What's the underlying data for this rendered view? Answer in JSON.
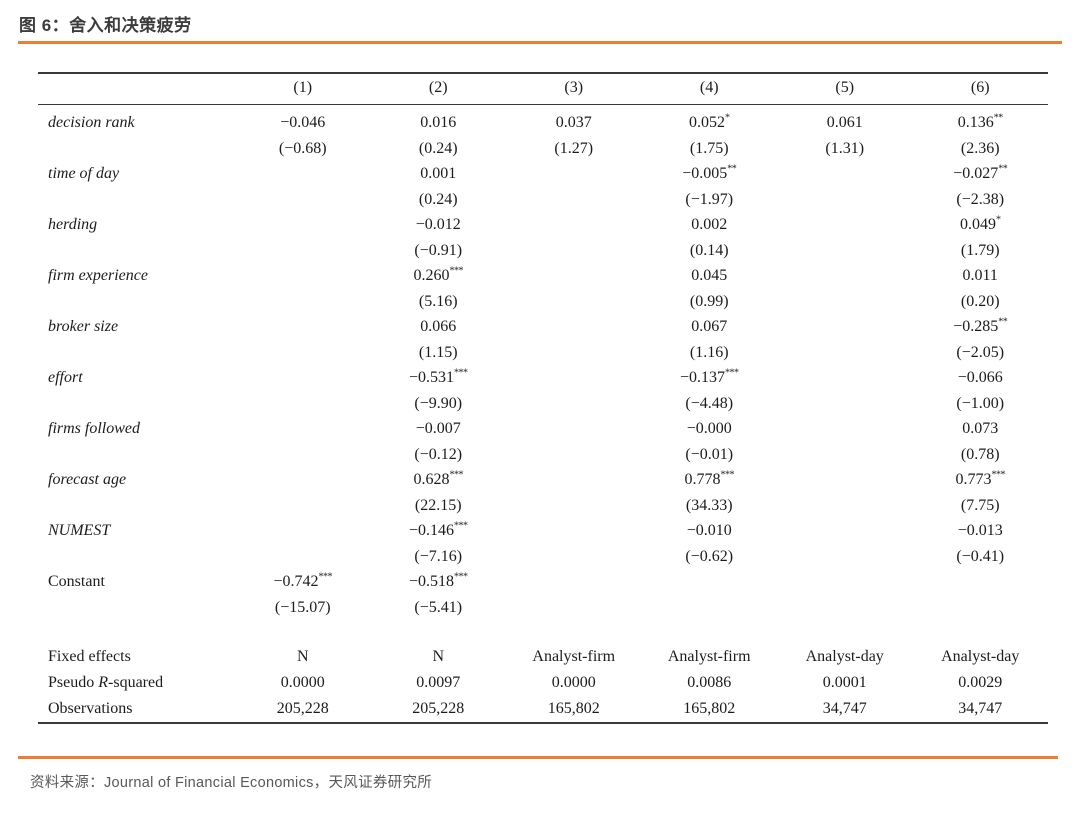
{
  "title": "图 6：舍入和决策疲劳",
  "source": "资料来源：Journal of Financial Economics，天风证券研究所",
  "colors": {
    "accent_orange": "#ED7D31",
    "rule_dark": "#3A3A3A",
    "table_text": "#1C1C1C",
    "title_gray": "#3C3C3C",
    "source_gray": "#585858"
  },
  "chart_data": {
    "type": "table",
    "title": "图 6：舍入和决策疲劳",
    "columns": [
      "(1)",
      "(2)",
      "(3)",
      "(4)",
      "(5)",
      "(6)"
    ],
    "variable_rows": [
      {
        "label": "decision rank",
        "style": "italic",
        "coefs": [
          "−0.046",
          "0.016",
          "0.037",
          "0.052*",
          "0.061",
          "0.136**"
        ],
        "tstats": [
          "(−0.68)",
          "(0.24)",
          "(1.27)",
          "(1.75)",
          "(1.31)",
          "(2.36)"
        ]
      },
      {
        "label": "time of day",
        "style": "italic",
        "coefs": [
          "",
          "0.001",
          "",
          "−0.005**",
          "",
          "−0.027**"
        ],
        "tstats": [
          "",
          "(0.24)",
          "",
          "(−1.97)",
          "",
          "(−2.38)"
        ]
      },
      {
        "label": "herding",
        "style": "italic",
        "coefs": [
          "",
          "−0.012",
          "",
          "0.002",
          "",
          "0.049*"
        ],
        "tstats": [
          "",
          "(−0.91)",
          "",
          "(0.14)",
          "",
          "(1.79)"
        ]
      },
      {
        "label": "firm experience",
        "style": "italic",
        "coefs": [
          "",
          "0.260***",
          "",
          "0.045",
          "",
          "0.011"
        ],
        "tstats": [
          "",
          "(5.16)",
          "",
          "(0.99)",
          "",
          "(0.20)"
        ]
      },
      {
        "label": "broker size",
        "style": "italic",
        "coefs": [
          "",
          "0.066",
          "",
          "0.067",
          "",
          "−0.285**"
        ],
        "tstats": [
          "",
          "(1.15)",
          "",
          "(1.16)",
          "",
          "(−2.05)"
        ]
      },
      {
        "label": "effort",
        "style": "italic",
        "coefs": [
          "",
          "−0.531***",
          "",
          "−0.137***",
          "",
          "−0.066"
        ],
        "tstats": [
          "",
          "(−9.90)",
          "",
          "(−4.48)",
          "",
          "(−1.00)"
        ]
      },
      {
        "label": "firms followed",
        "style": "italic",
        "coefs": [
          "",
          "−0.007",
          "",
          "−0.000",
          "",
          "0.073"
        ],
        "tstats": [
          "",
          "(−0.12)",
          "",
          "(−0.01)",
          "",
          "(0.78)"
        ]
      },
      {
        "label": "forecast age",
        "style": "italic",
        "coefs": [
          "",
          "0.628***",
          "",
          "0.778***",
          "",
          "0.773***"
        ],
        "tstats": [
          "",
          "(22.15)",
          "",
          "(34.33)",
          "",
          "(7.75)"
        ]
      },
      {
        "label": "NUMEST",
        "style": "italic",
        "coefs": [
          "",
          "−0.146***",
          "",
          "−0.010",
          "",
          "−0.013"
        ],
        "tstats": [
          "",
          "(−7.16)",
          "",
          "(−0.62)",
          "",
          "(−0.41)"
        ]
      },
      {
        "label": "Constant",
        "style": "roman",
        "coefs": [
          "−0.742***",
          "−0.518***",
          "",
          "",
          "",
          ""
        ],
        "tstats": [
          "(−15.07)",
          "(−5.41)",
          "",
          "",
          "",
          ""
        ]
      }
    ],
    "stat_rows": [
      {
        "label": "Fixed effects",
        "values": [
          "N",
          "N",
          "Analyst-firm",
          "Analyst-firm",
          "Analyst-day",
          "Analyst-day"
        ]
      },
      {
        "label": "Pseudo R-squared",
        "em": "R",
        "values": [
          "0.0000",
          "0.0097",
          "0.0000",
          "0.0086",
          "0.0001",
          "0.0029"
        ]
      },
      {
        "label": "Observations",
        "values": [
          "205,228",
          "205,228",
          "165,802",
          "165,802",
          "34,747",
          "34,747"
        ]
      }
    ]
  }
}
